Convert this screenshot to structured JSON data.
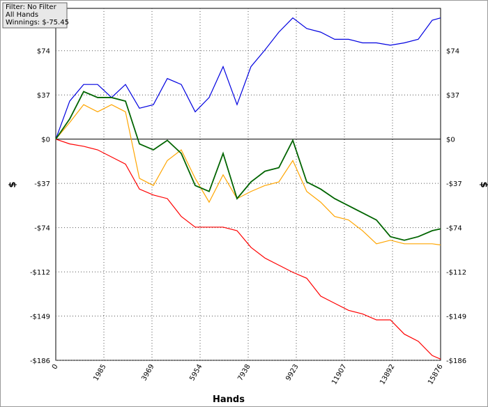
{
  "chart_data": {
    "type": "line",
    "annotations": [
      "Filter: No Filter",
      "All Hands",
      "Winnings: $-75.45"
    ],
    "x_label": "Hands",
    "y_label": "$",
    "x": [
      0,
      575,
      1150,
      1726,
      2301,
      2876,
      3451,
      4027,
      4602,
      5177,
      5752,
      6327,
      6903,
      7478,
      8053,
      8628,
      9203,
      9779,
      10354,
      10929,
      11504,
      12079,
      12655,
      13230,
      13805,
      14380,
      14955,
      15531,
      15876
    ],
    "series": [
      {
        "color": "#0000e0",
        "values": [
          0,
          32,
          46,
          46,
          35,
          46,
          26,
          29,
          51,
          46,
          23,
          35,
          61,
          29,
          61,
          75,
          90,
          102,
          93,
          90,
          84,
          84,
          81,
          81,
          79,
          81,
          84,
          100,
          102
        ]
      },
      {
        "color": "#ffa500",
        "values": [
          0,
          14,
          29,
          23,
          29,
          23,
          -33,
          -39,
          -18,
          -9,
          -33,
          -53,
          -30,
          -50,
          -44,
          -39,
          -36,
          -18,
          -44,
          -53,
          -65,
          -68,
          -77,
          -88,
          -85,
          -88,
          -88,
          -88,
          -89
        ]
      },
      {
        "color": "#ff0000",
        "values": [
          0,
          -4,
          -6,
          -9,
          -15,
          -21,
          -42,
          -47,
          -50,
          -65,
          -74,
          -74,
          -74,
          -77,
          -91,
          -100,
          -106,
          -112,
          -117,
          -132,
          -138,
          -144,
          -147,
          -152,
          -152,
          -164,
          -170,
          -182,
          -185
        ]
      },
      {
        "color": "#006400",
        "values": [
          0,
          17,
          40,
          35,
          35,
          32,
          -4,
          -9,
          -1,
          -12,
          -39,
          -44,
          -12,
          -50,
          -36,
          -27,
          -24,
          -1,
          -36,
          -42,
          -50,
          -56,
          -62,
          -68,
          -82,
          -85,
          -82,
          -77,
          -75.45
        ]
      }
    ],
    "xlim": [
      0,
      15876
    ],
    "xticks": [
      0,
      1985,
      3969,
      5954,
      7938,
      9923,
      11907,
      13892,
      15876
    ],
    "ylim": [
      -186,
      110
    ],
    "yticks": [
      {
        "value": 74.4,
        "label": "$74"
      },
      {
        "value": 37.2,
        "label": "$37"
      },
      {
        "value": 0,
        "label": "$0"
      },
      {
        "value": -37.2,
        "label": "-$37"
      },
      {
        "value": -74.4,
        "label": "-$74"
      },
      {
        "value": -111.6,
        "label": "-$112"
      },
      {
        "value": -148.8,
        "label": "-$149"
      },
      {
        "value": -186,
        "label": "-$186"
      }
    ],
    "grid": true
  }
}
